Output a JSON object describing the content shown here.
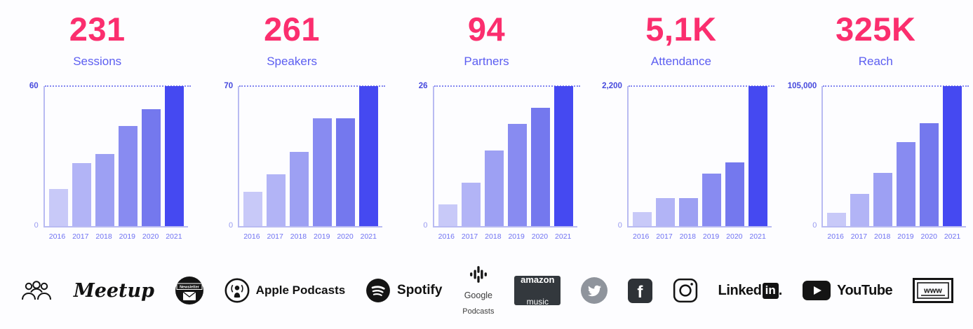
{
  "colors": {
    "stat_value": "#fb2e6e",
    "stat_label": "#5c5ef1",
    "axis": "#b9bbf2",
    "dotted_line": "#8386f0",
    "bar_colors": [
      "#c8c9f8",
      "#b2b4f6",
      "#9da0f3",
      "#888bf1",
      "#7478ee",
      "#4549f1"
    ]
  },
  "stats": [
    {
      "value": "231",
      "label": "Sessions"
    },
    {
      "value": "261",
      "label": "Speakers"
    },
    {
      "value": "94",
      "label": "Partners"
    },
    {
      "value": "5,1K",
      "label": "Attendance"
    },
    {
      "value": "325K",
      "label": "Reach"
    }
  ],
  "chart_data": [
    {
      "type": "bar",
      "title": "Sessions",
      "categories": [
        "2016",
        "2017",
        "2018",
        "2019",
        "2020",
        "2021"
      ],
      "values": [
        16,
        27,
        31,
        43,
        50,
        60
      ],
      "ylim": [
        0,
        60
      ],
      "ymax_label": "60",
      "ymin_label": "0",
      "grid": false,
      "legend": "none"
    },
    {
      "type": "bar",
      "title": "Speakers",
      "categories": [
        "2016",
        "2017",
        "2018",
        "2019",
        "2020",
        "2021"
      ],
      "values": [
        17,
        26,
        37,
        54,
        54,
        70
      ],
      "ylim": [
        0,
        70
      ],
      "ymax_label": "70",
      "ymin_label": "0",
      "grid": false,
      "legend": "none"
    },
    {
      "type": "bar",
      "title": "Partners",
      "categories": [
        "2016",
        "2017",
        "2018",
        "2019",
        "2020",
        "2021"
      ],
      "values": [
        4,
        8,
        14,
        19,
        22,
        26
      ],
      "ylim": [
        0,
        26
      ],
      "ymax_label": "26",
      "ymin_label": "0",
      "grid": false,
      "legend": "none"
    },
    {
      "type": "bar",
      "title": "Attendance",
      "categories": [
        "2016",
        "2017",
        "2018",
        "2019",
        "2020",
        "2021"
      ],
      "values": [
        220,
        440,
        440,
        830,
        1000,
        2200
      ],
      "ylim": [
        0,
        2200
      ],
      "ymax_label": "2,200",
      "ymin_label": "0",
      "grid": false,
      "legend": "none"
    },
    {
      "type": "bar",
      "title": "Reach",
      "categories": [
        "2016",
        "2017",
        "2018",
        "2019",
        "2020",
        "2021"
      ],
      "values": [
        10000,
        24000,
        40000,
        63000,
        77000,
        105000
      ],
      "ylim": [
        0,
        105000
      ],
      "ymax_label": "105,000",
      "ymin_label": "0",
      "grid": false,
      "legend": "none"
    }
  ],
  "channels": {
    "meetup": "Meetup",
    "newsletter": "Newsletter",
    "apple_podcasts": "Apple Podcasts",
    "spotify": "Spotify",
    "google_line1": "Google",
    "google_line2": "Podcasts",
    "amazon_line1": "amazon",
    "amazon_line2": "music",
    "facebook_glyph": "f",
    "linkedin_text": "Linked",
    "linkedin_box": "in",
    "linkedin_period": ".",
    "youtube": "YouTube",
    "www": "www"
  }
}
